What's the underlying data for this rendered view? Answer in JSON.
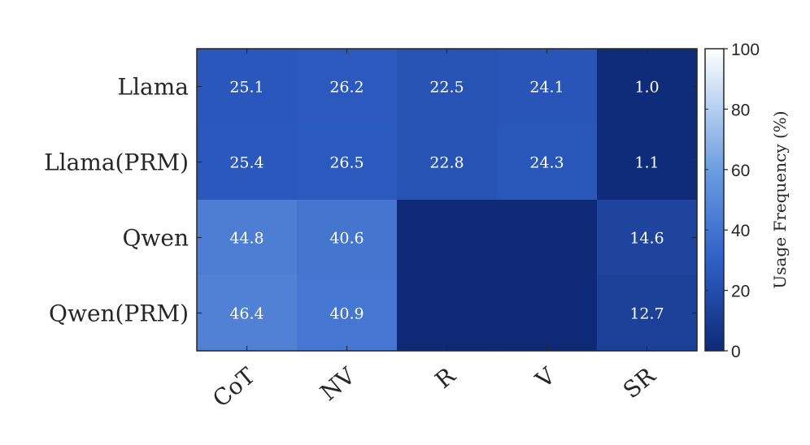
{
  "chart_data": {
    "type": "heatmap",
    "rows": [
      "Llama",
      "Llama(PRM)",
      "Qwen",
      "Qwen(PRM)"
    ],
    "columns": [
      "CoT",
      "NV",
      "R",
      "V",
      "SR"
    ],
    "values": [
      [
        25.1,
        26.2,
        22.5,
        24.1,
        1.0
      ],
      [
        25.4,
        26.5,
        22.8,
        24.3,
        1.1
      ],
      [
        44.8,
        40.6,
        0,
        0,
        14.6
      ],
      [
        46.4,
        40.9,
        0,
        0,
        12.7
      ]
    ],
    "labels": [
      [
        "25.1",
        "26.2",
        "22.5",
        "24.1",
        "1.0"
      ],
      [
        "25.4",
        "26.5",
        "22.8",
        "24.3",
        "1.1"
      ],
      [
        "44.8",
        "40.6",
        "",
        "",
        "14.6"
      ],
      [
        "46.4",
        "40.9",
        "",
        "",
        "12.7"
      ]
    ],
    "colorbar": {
      "label": "Usage Frequency (%)",
      "range": [
        0,
        100
      ],
      "ticks": [
        "0",
        "20",
        "40",
        "60",
        "80",
        "100"
      ]
    },
    "colormap": [
      "#0e2a77",
      "#2f60c8",
      "#6b9de0",
      "#ffffff"
    ]
  }
}
